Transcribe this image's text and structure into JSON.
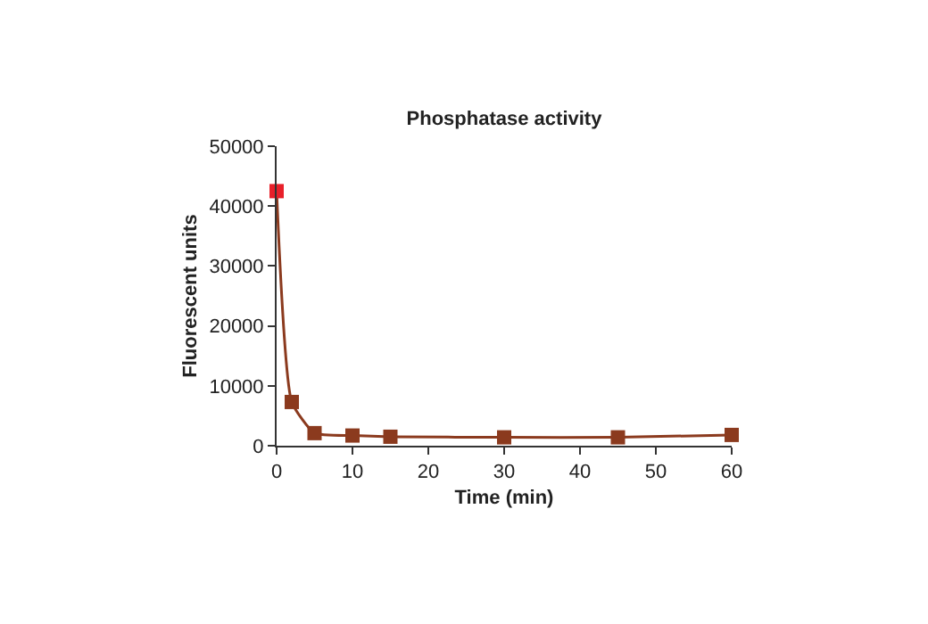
{
  "chart_data": {
    "type": "line",
    "title": "Phosphatase activity",
    "xlabel": "Time (min)",
    "ylabel": "Fluorescent units",
    "x": [
      0,
      2,
      5,
      10,
      15,
      30,
      45,
      60
    ],
    "series": [
      {
        "color": "#8b3a1e",
        "colors": [
          "#e8202a",
          "#8b3a1e",
          "#8b3a1e",
          "#8b3a1e",
          "#8b3a1e",
          "#8b3a1e",
          "#8b3a1e",
          "#8b3a1e"
        ],
        "values": [
          42500,
          7300,
          2100,
          1700,
          1500,
          1400,
          1400,
          1800
        ]
      }
    ],
    "xlim": [
      0,
      60
    ],
    "xticks": [
      0,
      10,
      20,
      30,
      40,
      50,
      60
    ],
    "ylim": [
      0,
      50000
    ],
    "yticks": [
      0,
      10000,
      20000,
      30000,
      40000,
      50000
    ],
    "marker": "square",
    "line_style": "solid"
  }
}
